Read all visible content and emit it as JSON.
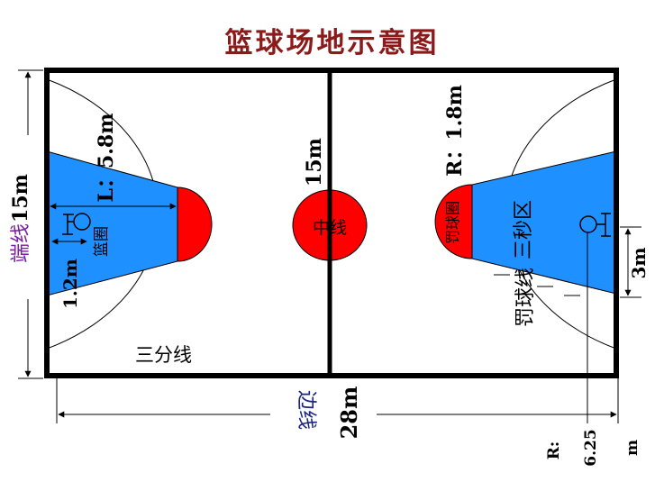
{
  "title": "篮球场地示意图",
  "labels": {
    "end_line": "端线",
    "end_line_len": "15m",
    "side_line": "边线",
    "side_line_len": "28m",
    "center_label": "中线",
    "center_len": "15m",
    "three_point_line": "三分线",
    "basket_left": "篮圈",
    "basket_right": "篮圈",
    "key_length_left": "L：5.8m",
    "key_width_left": "1.2m",
    "circle_radius": "R：1.8m",
    "free_throw_circle": "罚球圈",
    "three_second_area": "三秒区",
    "free_throw_line": "罚球线",
    "lane_width_right": "3m",
    "three_point_radius_r": "R:",
    "three_point_radius_val": "6.25",
    "three_point_radius_m": "m"
  },
  "colors": {
    "title": "#8b1a1a",
    "court_line": "#000000",
    "key_fill": "#1e90ff",
    "circle_fill": "#ff0000",
    "end_line_text": "#7b1fa2",
    "side_line_text": "#1a237e",
    "dim_line": "#000000"
  }
}
